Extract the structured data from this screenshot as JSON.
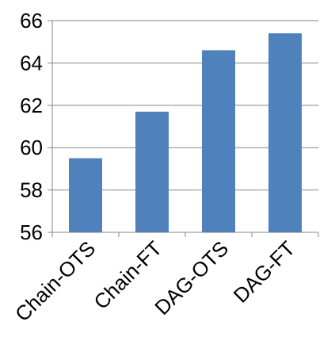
{
  "chart_data": {
    "type": "bar",
    "title": "",
    "xlabel": "",
    "ylabel": "",
    "categories": [
      "Chain-OTS",
      "Chain-FT",
      "DAG-OTS",
      "DAG-FT"
    ],
    "values": [
      59.5,
      61.7,
      64.6,
      65.4
    ],
    "ylim": [
      56,
      66
    ],
    "yticks": [
      "56",
      "58",
      "60",
      "62",
      "64",
      "66"
    ],
    "grid": true,
    "legend": "none",
    "bar_color": "#4F81BD",
    "grid_color": "#868686"
  }
}
